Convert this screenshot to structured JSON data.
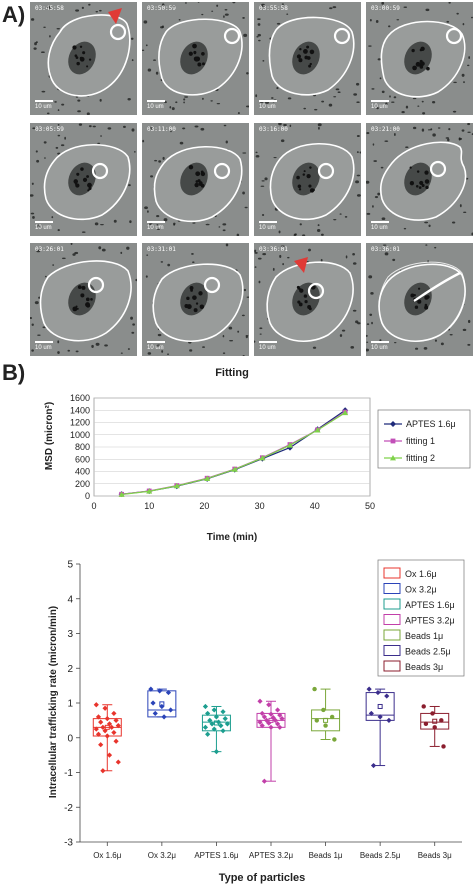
{
  "panel_a": {
    "label": "A)",
    "scale_text": "10 um",
    "timestamps": [
      "03:45:58",
      "03:50:59",
      "03:55:58",
      "03:00:59",
      "03:05:59",
      "03:11:00",
      "03:16:00",
      "03:21:00",
      "03:26:01",
      "03:31:01",
      "03:36:01",
      "03:36:01"
    ]
  },
  "panel_b": {
    "label": "B)"
  },
  "chart_data": [
    {
      "type": "line",
      "title": "Fitting",
      "xlabel": "Time (min)",
      "ylabel": "MSD (micron²)",
      "xlim": [
        0,
        50
      ],
      "ylim": [
        0,
        1600
      ],
      "xticks": [
        0,
        10,
        20,
        30,
        40,
        50
      ],
      "yticks": [
        0,
        200,
        400,
        600,
        800,
        1000,
        1200,
        1400,
        1600
      ],
      "legend": "right",
      "series": [
        {
          "name": "APTES 1.6μ",
          "marker": "diamond",
          "color": "#1f2a7a",
          "x": [
            5,
            10,
            15,
            20.5,
            25.5,
            30.5,
            35.5,
            40.5,
            45.5
          ],
          "y": [
            30,
            80,
            160,
            280,
            430,
            610,
            790,
            1090,
            1400
          ]
        },
        {
          "name": "fitting 1",
          "marker": "square",
          "color": "#c24fb8",
          "x": [
            5,
            10,
            15,
            20.5,
            25.5,
            30.5,
            35.5,
            40.5,
            45.5
          ],
          "y": [
            28,
            82,
            170,
            290,
            440,
            625,
            840,
            1080,
            1370
          ]
        },
        {
          "name": "fitting 2",
          "marker": "triangle",
          "color": "#7fd24a",
          "x": [
            5,
            10,
            15,
            20.5,
            25.5,
            30.5,
            35.5,
            40.5,
            45.5
          ],
          "y": [
            25,
            78,
            165,
            285,
            435,
            620,
            830,
            1075,
            1360
          ]
        }
      ]
    },
    {
      "type": "box",
      "xlabel": "Type of particles",
      "ylabel": "Intracellular trafficking rate (micron/min)",
      "ylim": [
        -3,
        5
      ],
      "yticks": [
        -3,
        -2,
        -1,
        0,
        1,
        2,
        3,
        4,
        5
      ],
      "legend": "top-right",
      "groups": [
        {
          "name": "Ox 1.6μ",
          "color": "#e8342c",
          "box": [
            0.05,
            0.55
          ],
          "median": 0.3,
          "whisker": [
            -0.95,
            0.95
          ],
          "marker": "diamond",
          "points": [
            0.95,
            0.85,
            0.7,
            0.6,
            0.55,
            0.5,
            0.45,
            0.4,
            0.35,
            0.3,
            0.3,
            0.25,
            0.2,
            0.15,
            0.1,
            0.05,
            -0.1,
            -0.2,
            -0.5,
            -0.7,
            -0.95
          ]
        },
        {
          "name": "Ox 3.2μ",
          "color": "#2b44b8",
          "box": [
            0.6,
            1.35
          ],
          "median": 0.8,
          "whisker": [
            0.6,
            1.4
          ],
          "marker": "diamond",
          "points": [
            1.4,
            1.35,
            1.3,
            1.0,
            0.9,
            0.8,
            0.7,
            0.6
          ]
        },
        {
          "name": "APTES 1.6μ",
          "color": "#1c9e8f",
          "box": [
            0.2,
            0.65
          ],
          "median": 0.45,
          "whisker": [
            -0.4,
            0.9
          ],
          "marker": "diamond",
          "points": [
            0.9,
            0.8,
            0.75,
            0.7,
            0.6,
            0.55,
            0.5,
            0.45,
            0.4,
            0.4,
            0.35,
            0.3,
            0.25,
            0.2,
            0.1,
            -0.4
          ]
        },
        {
          "name": "APTES 3.2μ",
          "color": "#c23fa9",
          "box": [
            0.3,
            0.7
          ],
          "median": 0.5,
          "whisker": [
            -1.25,
            1.05
          ],
          "marker": "diamond",
          "points": [
            1.05,
            0.95,
            0.8,
            0.7,
            0.68,
            0.65,
            0.6,
            0.58,
            0.55,
            0.5,
            0.5,
            0.45,
            0.42,
            0.4,
            0.35,
            0.3,
            0.3,
            -1.25
          ]
        },
        {
          "name": "Beads 1μ",
          "color": "#7aa73a",
          "box": [
            0.2,
            0.8
          ],
          "median": 0.55,
          "whisker": [
            -0.05,
            1.4
          ],
          "marker": "circle",
          "points": [
            1.4,
            0.8,
            0.6,
            0.5,
            0.35,
            -0.05
          ]
        },
        {
          "name": "Beads 2.5μ",
          "color": "#3b2e8c",
          "box": [
            0.5,
            1.3
          ],
          "median": 0.65,
          "whisker": [
            -0.8,
            1.4
          ],
          "marker": "diamond",
          "points": [
            1.4,
            1.3,
            1.2,
            0.7,
            0.6,
            0.5,
            -0.8
          ]
        },
        {
          "name": "Beads 3μ",
          "color": "#8b1e2e",
          "box": [
            0.25,
            0.7
          ],
          "median": 0.45,
          "whisker": [
            -0.25,
            0.9
          ],
          "marker": "circle",
          "points": [
            0.9,
            0.7,
            0.5,
            0.4,
            0.3,
            -0.25
          ]
        }
      ]
    }
  ]
}
